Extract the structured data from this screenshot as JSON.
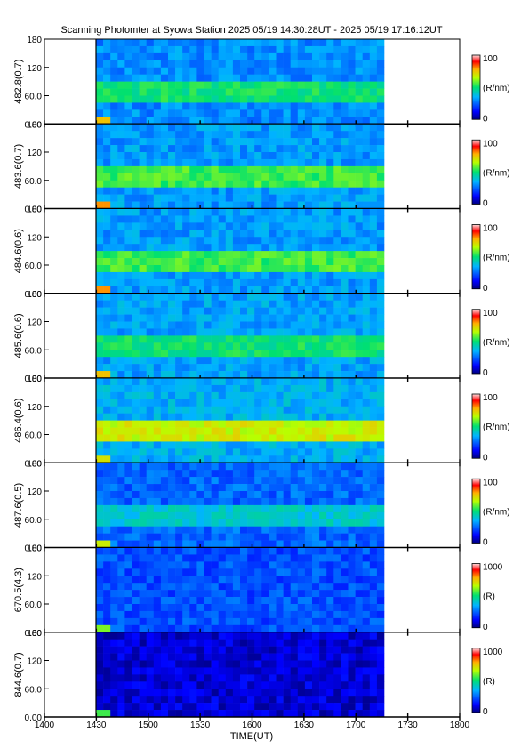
{
  "figure": {
    "title": "Scanning Photomter at Syowa Station 2025 05/19 14:30:28UT - 2025 05/19 17:16:12UT",
    "xlabel": "TIME(UT)"
  },
  "chart_data": {
    "type": "heatmap",
    "x": {
      "label": "TIME(UT)",
      "ticks": [
        "1400",
        "1430",
        "1500",
        "1530",
        "1600",
        "1630",
        "1700",
        "1730",
        "1800"
      ],
      "range": [
        "14:00",
        "18:00"
      ],
      "data_start": "14:30:28",
      "data_end": "17:16:12"
    },
    "y_ticks": [
      "0.00",
      "60.0",
      "120",
      "180"
    ],
    "y_range": [
      0,
      180
    ],
    "panels": [
      {
        "label": "482.8(0.7)",
        "unit": "(R/nm)",
        "cmax": "100",
        "cmin": "0",
        "bg_level": 0.3,
        "band": {
          "from_y": 48,
          "to_y": 85,
          "level": 0.5
        },
        "dawn_spot_level": 0.45
      },
      {
        "label": "483.6(0.7)",
        "unit": "(R/nm)",
        "cmax": "100",
        "cmin": "0",
        "bg_level": 0.32,
        "band": {
          "from_y": 60,
          "to_y": 82,
          "level": 0.55
        },
        "dawn_spot_level": 0.5
      },
      {
        "label": "484.6(0.6)",
        "unit": "(R/nm)",
        "cmax": "100",
        "cmin": "0",
        "bg_level": 0.32,
        "band": {
          "from_y": 55,
          "to_y": 85,
          "level": 0.55
        },
        "dawn_spot_level": 0.5
      },
      {
        "label": "485.6(0.6)",
        "unit": "(R/nm)",
        "cmax": "100",
        "cmin": "0",
        "bg_level": 0.33,
        "band": {
          "from_y": 55,
          "to_y": 80,
          "level": 0.5
        },
        "dawn_spot_level": 0.45
      },
      {
        "label": "486.4(0.6)",
        "unit": "(R/nm)",
        "cmax": "100",
        "cmin": "0",
        "bg_level": 0.35,
        "band": {
          "from_y": 58,
          "to_y": 82,
          "level": 0.68
        },
        "dawn_spot_level": 0.4
      },
      {
        "label": "487.6(0.5)",
        "unit": "(R/nm)",
        "cmax": "100",
        "cmin": "0",
        "bg_level": 0.25,
        "band": {
          "from_y": 50,
          "to_y": 80,
          "level": 0.4
        },
        "dawn_spot_level": 0.38
      },
      {
        "label": "670.5(4.3)",
        "unit": "(R)",
        "cmax": "1000",
        "cmin": "0",
        "bg_level": 0.22,
        "band": {
          "from_y": 60,
          "to_y": 60,
          "level": 0.24
        },
        "dawn_spot_level": 0.3
      },
      {
        "label": "844.6(0.7)",
        "unit": "(R)",
        "cmax": "1000",
        "cmin": "0",
        "bg_level": 0.08,
        "band": {
          "from_y": 180,
          "to_y": 180,
          "level": 0.35
        },
        "dawn_spot_level": 0.25
      }
    ]
  }
}
